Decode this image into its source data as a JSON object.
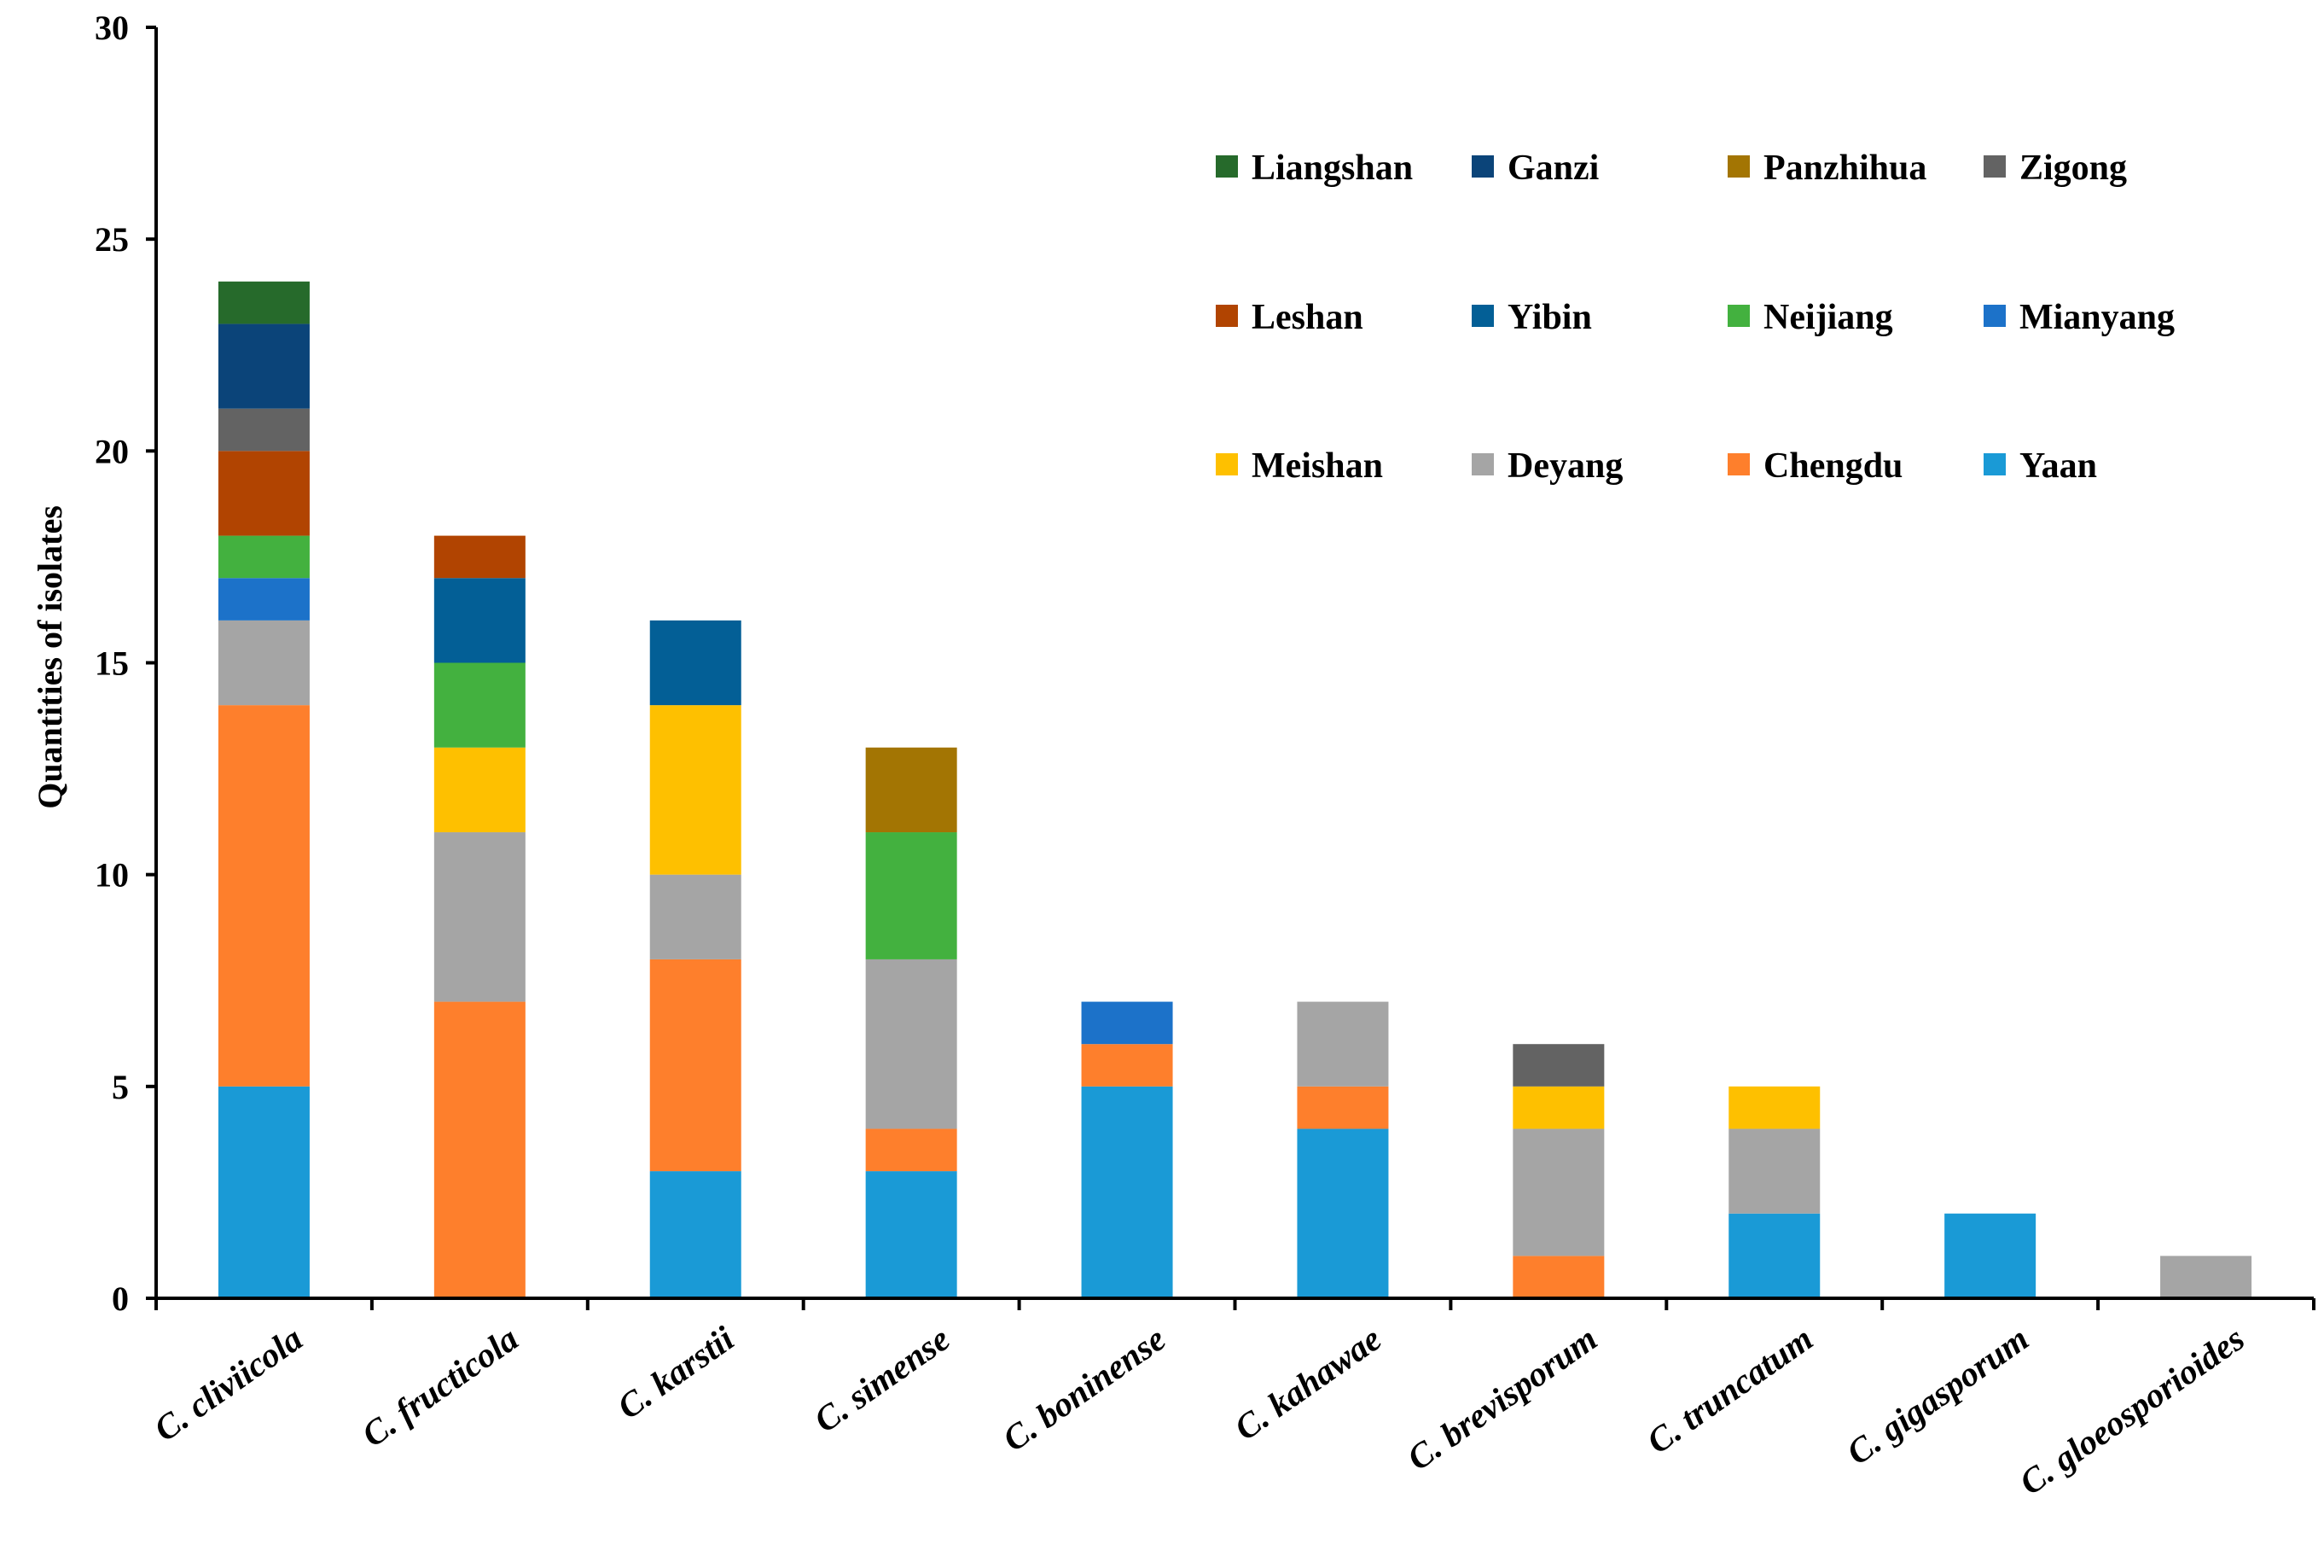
{
  "chart_data": {
    "type": "bar",
    "stacked": true,
    "title": "",
    "xlabel": "",
    "ylabel": "Quantities of isolates",
    "ylim": [
      0,
      30
    ],
    "yticks": [
      0,
      5,
      10,
      15,
      20,
      25,
      30
    ],
    "grid": false,
    "legend_position": "top-right",
    "categories": [
      "C. cliviicola",
      "C. fructicola",
      "C. karstii",
      "C. simense",
      "C. boninense",
      "C. kahawae",
      "C. brevisporum",
      "C. truncatum",
      "C. gigasporum",
      "C. gloeosporioides"
    ],
    "series": [
      {
        "name": "Yaan",
        "color": "#1a9ad6",
        "values": [
          5,
          0,
          3,
          3,
          5,
          4,
          0,
          2,
          2,
          0
        ]
      },
      {
        "name": "Chengdu",
        "color": "#fe7f2c",
        "values": [
          9,
          7,
          5,
          1,
          1,
          1,
          1,
          0,
          0,
          0
        ]
      },
      {
        "name": "Deyang",
        "color": "#a5a5a5",
        "values": [
          2,
          4,
          2,
          4,
          0,
          2,
          3,
          2,
          0,
          1
        ]
      },
      {
        "name": "Meishan",
        "color": "#fec000",
        "values": [
          0,
          2,
          4,
          0,
          0,
          0,
          1,
          1,
          0,
          0
        ]
      },
      {
        "name": "Mianyang",
        "color": "#1c72c9",
        "values": [
          1,
          0,
          0,
          0,
          1,
          0,
          0,
          0,
          0,
          0
        ]
      },
      {
        "name": "Neijiang",
        "color": "#43b13f",
        "values": [
          1,
          2,
          0,
          3,
          0,
          0,
          0,
          0,
          0,
          0
        ]
      },
      {
        "name": "Yibin",
        "color": "#035f96",
        "values": [
          0,
          2,
          2,
          0,
          0,
          0,
          0,
          0,
          0,
          0
        ]
      },
      {
        "name": "Leshan",
        "color": "#b14401",
        "values": [
          2,
          1,
          0,
          0,
          0,
          0,
          0,
          0,
          0,
          0
        ]
      },
      {
        "name": "Zigong",
        "color": "#636363",
        "values": [
          1,
          0,
          0,
          0,
          0,
          0,
          1,
          0,
          0,
          0
        ]
      },
      {
        "name": "Panzhihua",
        "color": "#a37503",
        "values": [
          0,
          0,
          0,
          2,
          0,
          0,
          0,
          0,
          0,
          0
        ]
      },
      {
        "name": "Ganzi",
        "color": "#0b4479",
        "values": [
          2,
          0,
          0,
          0,
          0,
          0,
          0,
          0,
          0,
          0
        ]
      },
      {
        "name": "Liangshan",
        "color": "#266a2b",
        "values": [
          1,
          0,
          0,
          0,
          0,
          0,
          0,
          0,
          0,
          0
        ]
      }
    ],
    "legend_order": [
      "Liangshan",
      "Ganzi",
      "Panzhihua",
      "Zigong",
      "Leshan",
      "Yibin",
      "Neijiang",
      "Mianyang",
      "Meishan",
      "Deyang",
      "Chengdu",
      "Yaan"
    ]
  }
}
